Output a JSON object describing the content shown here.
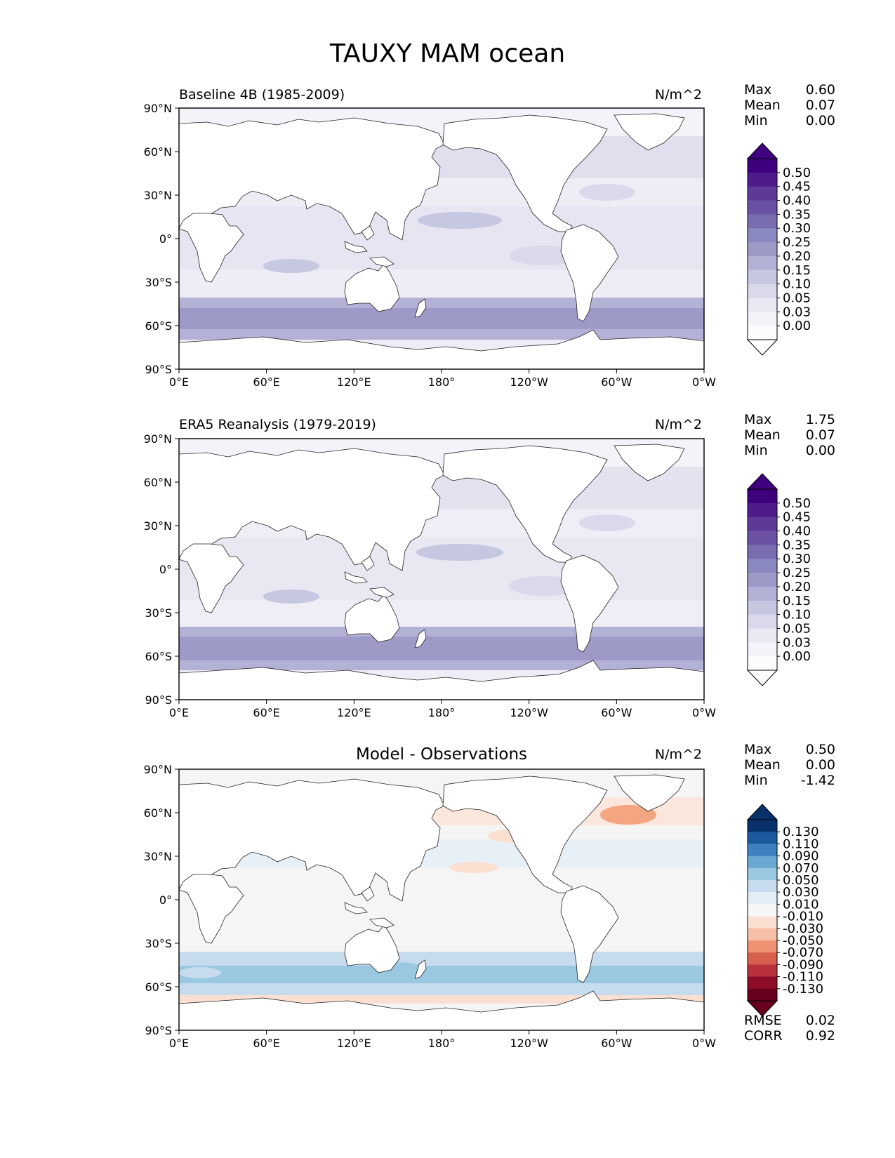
{
  "title": "TAUXY MAM ocean",
  "lat_ticks": [
    "90°N",
    "60°N",
    "30°N",
    "0°",
    "30°S",
    "60°S",
    "90°S"
  ],
  "lon_ticks": [
    "0°E",
    "60°E",
    "120°E",
    "180°",
    "120°W",
    "60°W",
    "0°W"
  ],
  "panels": [
    {
      "title": "Baseline 4B (1985-2009)",
      "units": "N/m^2",
      "stats": [
        {
          "label": "Max",
          "value": "0.60"
        },
        {
          "label": "Mean",
          "value": "0.07"
        },
        {
          "label": "Min",
          "value": "0.00"
        }
      ],
      "colorbar": {
        "ticks": [
          "0.50",
          "0.45",
          "0.40",
          "0.35",
          "0.30",
          "0.25",
          "0.20",
          "0.15",
          "0.10",
          "0.05",
          "0.03",
          "0.00"
        ],
        "colors": [
          "#3f007d",
          "#4f1b8b",
          "#5e3a98",
          "#6a51a3",
          "#796db0",
          "#8a88c0",
          "#9e9ac8",
          "#b3b1d6",
          "#c6c7e1",
          "#d9d9eb",
          "#e9e8f3",
          "#f4f3f9",
          "#fcfbfd"
        ],
        "cap_top": "#3f007d",
        "cap_bottom": "#ffffff"
      }
    },
    {
      "title": "ERA5 Reanalysis (1979-2019)",
      "units": "N/m^2",
      "stats": [
        {
          "label": "Max",
          "value": "1.75"
        },
        {
          "label": "Mean",
          "value": "0.07"
        },
        {
          "label": "Min",
          "value": "0.00"
        }
      ],
      "colorbar": {
        "ticks": [
          "0.50",
          "0.45",
          "0.40",
          "0.35",
          "0.30",
          "0.25",
          "0.20",
          "0.15",
          "0.10",
          "0.05",
          "0.03",
          "0.00"
        ],
        "colors": [
          "#3f007d",
          "#4f1b8b",
          "#5e3a98",
          "#6a51a3",
          "#796db0",
          "#8a88c0",
          "#9e9ac8",
          "#b3b1d6",
          "#c6c7e1",
          "#d9d9eb",
          "#e9e8f3",
          "#f4f3f9",
          "#fcfbfd"
        ],
        "cap_top": "#3f007d",
        "cap_bottom": "#ffffff"
      }
    },
    {
      "title": "Model - Observations",
      "units": "N/m^2",
      "stats": [
        {
          "label": "Max",
          "value": "0.50"
        },
        {
          "label": "Mean",
          "value": "0.00"
        },
        {
          "label": "Min",
          "value": "-1.42"
        }
      ],
      "bottom_stats": [
        {
          "label": "RMSE",
          "value": "0.02"
        },
        {
          "label": "CORR",
          "value": "0.92"
        }
      ],
      "colorbar": {
        "ticks": [
          "0.130",
          "0.110",
          "0.090",
          "0.070",
          "0.050",
          "0.030",
          "0.010",
          "-0.010",
          "-0.030",
          "-0.050",
          "-0.070",
          "-0.090",
          "-0.110",
          "-0.130"
        ],
        "colors": [
          "#08306b",
          "#1c5a9e",
          "#3d82bf",
          "#6aa9d2",
          "#9ac8e0",
          "#c6dcee",
          "#e2edf6",
          "#f7f7f7",
          "#fbe0d2",
          "#f7bfa5",
          "#ee9273",
          "#d6604d",
          "#b8313a",
          "#8c0d25",
          "#67001f"
        ],
        "cap_top": "#08306b",
        "cap_bottom": "#67001f"
      }
    }
  ]
}
